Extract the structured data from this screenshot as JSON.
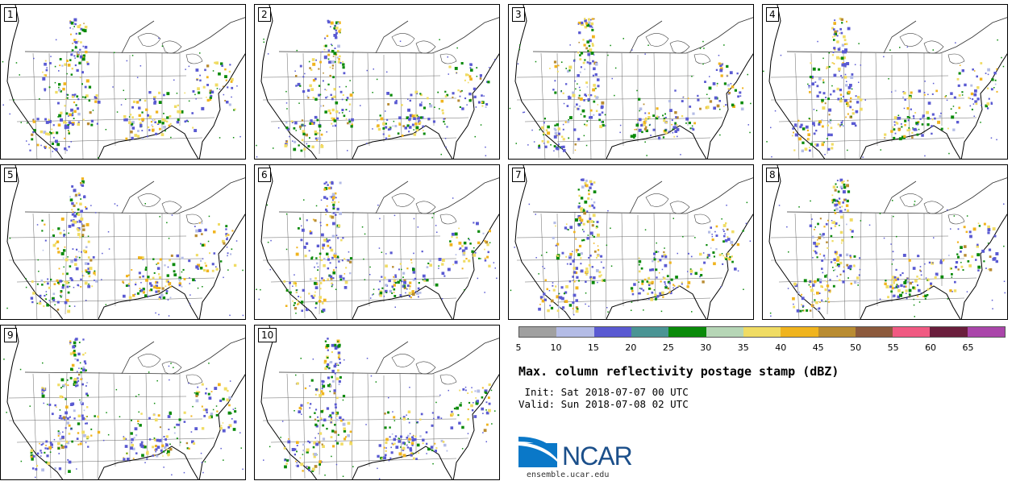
{
  "panels": [
    {
      "label": "1"
    },
    {
      "label": "2"
    },
    {
      "label": "3"
    },
    {
      "label": "4"
    },
    {
      "label": "5"
    },
    {
      "label": "6"
    },
    {
      "label": "7"
    },
    {
      "label": "8"
    },
    {
      "label": "9"
    },
    {
      "label": "10"
    }
  ],
  "colorbar": {
    "colors": [
      "#a0a0a0",
      "#b4bce6",
      "#5a5ad2",
      "#4a9494",
      "#0a8a0a",
      "#b6d6b6",
      "#f0dc64",
      "#f0b41e",
      "#b98c32",
      "#8c5a3c",
      "#f05a82",
      "#6a1e3c",
      "#aa46aa"
    ],
    "ticks": [
      "5",
      "10",
      "15",
      "20",
      "25",
      "30",
      "35",
      "40",
      "45",
      "50",
      "55",
      "60",
      "65"
    ]
  },
  "title": "Max. column reflectivity postage stamp (dBZ)",
  "init_line": " Init: Sat 2018-07-07 00 UTC",
  "valid_line": "Valid: Sun 2018-07-08 02 UTC",
  "logo": {
    "text": "NCAR",
    "url": "ensemble.ucar.edu"
  }
}
